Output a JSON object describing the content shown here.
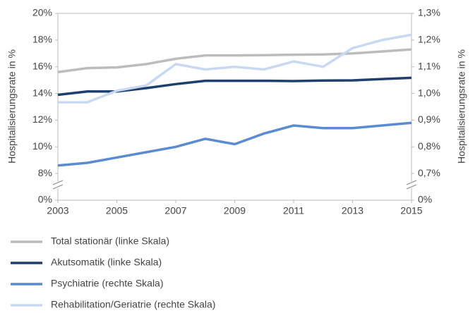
{
  "chart_data": {
    "type": "line",
    "y_label": "Hospitalisierungsrate in %",
    "y2_label": "Hospitalisierungsrate in %",
    "x": [
      2003,
      2004,
      2005,
      2006,
      2007,
      2008,
      2009,
      2010,
      2011,
      2012,
      2013,
      2014,
      2015
    ],
    "xlim": [
      2003,
      2015
    ],
    "xticks": [
      2003,
      2005,
      2007,
      2009,
      2011,
      2013,
      2015
    ],
    "ylim": [
      0,
      20
    ],
    "y_axis_break": [
      0,
      8
    ],
    "yticks": [
      {
        "value": 0,
        "label": "0%"
      },
      {
        "value": 8,
        "label": "8%"
      },
      {
        "value": 10,
        "label": "10%"
      },
      {
        "value": 12,
        "label": "12%"
      },
      {
        "value": 14,
        "label": "14%"
      },
      {
        "value": 16,
        "label": "16%"
      },
      {
        "value": 18,
        "label": "18%"
      },
      {
        "value": 20,
        "label": "20%"
      }
    ],
    "y2lim": [
      0,
      1.3
    ],
    "y2_axis_break": [
      0,
      0.7
    ],
    "y2ticks": [
      {
        "value": 0,
        "label": "0%"
      },
      {
        "value": 0.7,
        "label": "0,7%"
      },
      {
        "value": 0.8,
        "label": "0,8%"
      },
      {
        "value": 0.9,
        "label": "0,9%"
      },
      {
        "value": 1.0,
        "label": "1,0%"
      },
      {
        "value": 1.1,
        "label": "1,1%"
      },
      {
        "value": 1.2,
        "label": "1,2%"
      },
      {
        "value": 1.3,
        "label": "1,3%"
      }
    ],
    "grid": false,
    "legend": "bottom",
    "series": [
      {
        "name": "Total stationär (linke Skala)",
        "color": "#bcbcbc",
        "axis": "y",
        "values": [
          15.6,
          15.9,
          15.95,
          16.2,
          16.6,
          16.85,
          16.85,
          16.87,
          16.9,
          16.92,
          17.0,
          17.15,
          17.3
        ]
      },
      {
        "name": "Akutsomatik (linke Skala)",
        "color": "#1f3f6e",
        "axis": "y",
        "values": [
          13.9,
          14.15,
          14.15,
          14.4,
          14.7,
          14.95,
          14.95,
          14.95,
          14.93,
          14.97,
          14.98,
          15.08,
          15.17
        ]
      },
      {
        "name": "Psychiatrie (rechte Skala)",
        "color": "#5b8bd0",
        "axis": "y2",
        "values": [
          0.73,
          0.74,
          0.76,
          0.78,
          0.8,
          0.83,
          0.81,
          0.85,
          0.88,
          0.87,
          0.87,
          0.88,
          0.89
        ]
      },
      {
        "name": "Rehabilitation/Geriatrie (rechte Skala)",
        "color": "#c9d9f2",
        "axis": "y2",
        "values": [
          0.967,
          0.967,
          1.01,
          1.03,
          1.11,
          1.09,
          1.1,
          1.09,
          1.12,
          1.1,
          1.17,
          1.2,
          1.22
        ]
      }
    ]
  }
}
